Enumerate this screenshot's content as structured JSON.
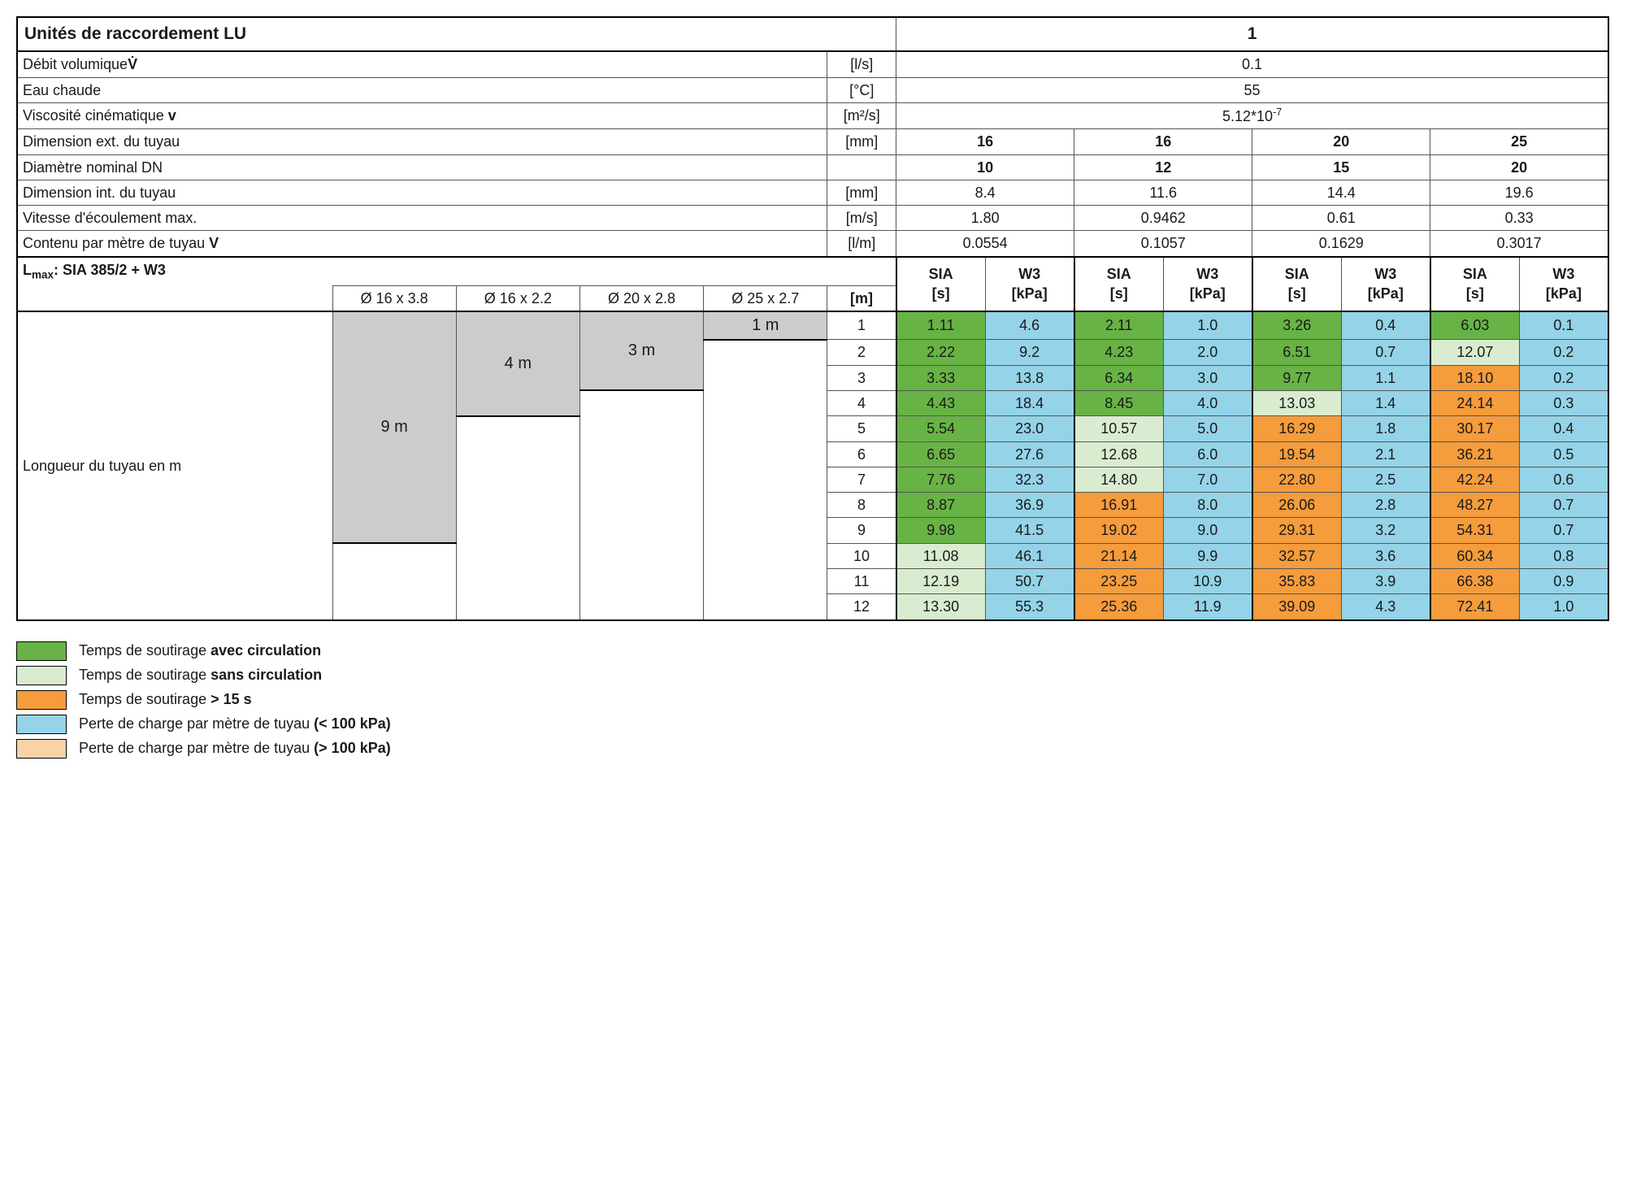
{
  "title_label": "Unités de raccordement LU",
  "title_value": "1",
  "rows_top": [
    {
      "l_pre": "Débit volumique",
      "l_bold": "V̇",
      "u": "[l/s]",
      "v": "0.1"
    },
    {
      "l_pre": "Eau chaude",
      "l_bold": "",
      "u": "[°C]",
      "v": "55"
    },
    {
      "l_pre": "Viscosité cinématique ",
      "l_bold": "v",
      "u": "[m²/s]",
      "v": "5.12*10<sup>-7</sup>"
    }
  ],
  "dimension_rows": [
    {
      "label": "Dimension ext. du tuyau",
      "u": "[mm]",
      "vals": [
        "16",
        "16",
        "20",
        "25"
      ],
      "bold": true
    },
    {
      "label": "Diamètre nominal DN",
      "u": "",
      "vals": [
        "10",
        "12",
        "15",
        "20"
      ],
      "bold": true
    },
    {
      "label": "Dimension int. du tuyau",
      "u": "[mm]",
      "vals": [
        "8.4",
        "11.6",
        "14.4",
        "19.6"
      ],
      "bold": false
    },
    {
      "label": "Vitesse d'écoulement max.",
      "u": "[m/s]",
      "vals": [
        "1.80",
        "0.9462",
        "0.61",
        "0.33"
      ],
      "bold": false
    },
    {
      "label": "Contenu par mètre de tuyau <b>V</b>",
      "u": "[l/m]",
      "vals": [
        "0.0554",
        "0.1057",
        "0.1629",
        "0.3017"
      ],
      "bold": false
    }
  ],
  "lmax_label": "L<sub>max</sub>: SIA 385/2 + W3",
  "pipe_headers": [
    "Ø 16 x 3.8",
    "Ø 16 x 2.2",
    "Ø 20 x 2.8",
    "Ø 25 x 2.7"
  ],
  "m_header": "[m]",
  "subheaders": [
    "SIA<br>[s]",
    "W3<br>[kPa]",
    "SIA<br>[s]",
    "W3<br>[kPa]",
    "SIA<br>[s]",
    "W3<br>[kPa]",
    "SIA<br>[s]",
    "W3<br>[kPa]"
  ],
  "longueur_label": "Longueur du tuyau en m",
  "lmax_cells": {
    "p1": "9 m",
    "p2": "4 m",
    "p3": "3 m",
    "p4": "1 m"
  },
  "data": [
    {
      "m": 1,
      "c": [
        [
          "1.11",
          "green"
        ],
        [
          "4.6",
          "lightblue"
        ],
        [
          "2.11",
          "green"
        ],
        [
          "1.0",
          "lightblue"
        ],
        [
          "3.26",
          "green"
        ],
        [
          "0.4",
          "lightblue"
        ],
        [
          "6.03",
          "green"
        ],
        [
          "0.1",
          "lightblue"
        ]
      ]
    },
    {
      "m": 2,
      "c": [
        [
          "2.22",
          "green"
        ],
        [
          "9.2",
          "lightblue"
        ],
        [
          "4.23",
          "green"
        ],
        [
          "2.0",
          "lightblue"
        ],
        [
          "6.51",
          "green"
        ],
        [
          "0.7",
          "lightblue"
        ],
        [
          "12.07",
          "lightgreen"
        ],
        [
          "0.2",
          "lightblue"
        ]
      ]
    },
    {
      "m": 3,
      "c": [
        [
          "3.33",
          "green"
        ],
        [
          "13.8",
          "lightblue"
        ],
        [
          "6.34",
          "green"
        ],
        [
          "3.0",
          "lightblue"
        ],
        [
          "9.77",
          "green"
        ],
        [
          "1.1",
          "lightblue"
        ],
        [
          "18.10",
          "orange"
        ],
        [
          "0.2",
          "lightblue"
        ]
      ]
    },
    {
      "m": 4,
      "c": [
        [
          "4.43",
          "green"
        ],
        [
          "18.4",
          "lightblue"
        ],
        [
          "8.45",
          "green"
        ],
        [
          "4.0",
          "lightblue"
        ],
        [
          "13.03",
          "lightgreen"
        ],
        [
          "1.4",
          "lightblue"
        ],
        [
          "24.14",
          "orange"
        ],
        [
          "0.3",
          "lightblue"
        ]
      ]
    },
    {
      "m": 5,
      "c": [
        [
          "5.54",
          "green"
        ],
        [
          "23.0",
          "lightblue"
        ],
        [
          "10.57",
          "lightgreen"
        ],
        [
          "5.0",
          "lightblue"
        ],
        [
          "16.29",
          "orange"
        ],
        [
          "1.8",
          "lightblue"
        ],
        [
          "30.17",
          "orange"
        ],
        [
          "0.4",
          "lightblue"
        ]
      ]
    },
    {
      "m": 6,
      "c": [
        [
          "6.65",
          "green"
        ],
        [
          "27.6",
          "lightblue"
        ],
        [
          "12.68",
          "lightgreen"
        ],
        [
          "6.0",
          "lightblue"
        ],
        [
          "19.54",
          "orange"
        ],
        [
          "2.1",
          "lightblue"
        ],
        [
          "36.21",
          "orange"
        ],
        [
          "0.5",
          "lightblue"
        ]
      ]
    },
    {
      "m": 7,
      "c": [
        [
          "7.76",
          "green"
        ],
        [
          "32.3",
          "lightblue"
        ],
        [
          "14.80",
          "lightgreen"
        ],
        [
          "7.0",
          "lightblue"
        ],
        [
          "22.80",
          "orange"
        ],
        [
          "2.5",
          "lightblue"
        ],
        [
          "42.24",
          "orange"
        ],
        [
          "0.6",
          "lightblue"
        ]
      ]
    },
    {
      "m": 8,
      "c": [
        [
          "8.87",
          "green"
        ],
        [
          "36.9",
          "lightblue"
        ],
        [
          "16.91",
          "orange"
        ],
        [
          "8.0",
          "lightblue"
        ],
        [
          "26.06",
          "orange"
        ],
        [
          "2.8",
          "lightblue"
        ],
        [
          "48.27",
          "orange"
        ],
        [
          "0.7",
          "lightblue"
        ]
      ]
    },
    {
      "m": 9,
      "c": [
        [
          "9.98",
          "green"
        ],
        [
          "41.5",
          "lightblue"
        ],
        [
          "19.02",
          "orange"
        ],
        [
          "9.0",
          "lightblue"
        ],
        [
          "29.31",
          "orange"
        ],
        [
          "3.2",
          "lightblue"
        ],
        [
          "54.31",
          "orange"
        ],
        [
          "0.7",
          "lightblue"
        ]
      ]
    },
    {
      "m": 10,
      "c": [
        [
          "11.08",
          "lightgreen"
        ],
        [
          "46.1",
          "lightblue"
        ],
        [
          "21.14",
          "orange"
        ],
        [
          "9.9",
          "lightblue"
        ],
        [
          "32.57",
          "orange"
        ],
        [
          "3.6",
          "lightblue"
        ],
        [
          "60.34",
          "orange"
        ],
        [
          "0.8",
          "lightblue"
        ]
      ]
    },
    {
      "m": 11,
      "c": [
        [
          "12.19",
          "lightgreen"
        ],
        [
          "50.7",
          "lightblue"
        ],
        [
          "23.25",
          "orange"
        ],
        [
          "10.9",
          "lightblue"
        ],
        [
          "35.83",
          "orange"
        ],
        [
          "3.9",
          "lightblue"
        ],
        [
          "66.38",
          "orange"
        ],
        [
          "0.9",
          "lightblue"
        ]
      ]
    },
    {
      "m": 12,
      "c": [
        [
          "13.30",
          "lightgreen"
        ],
        [
          "55.3",
          "lightblue"
        ],
        [
          "25.36",
          "orange"
        ],
        [
          "11.9",
          "lightblue"
        ],
        [
          "39.09",
          "orange"
        ],
        [
          "4.3",
          "lightblue"
        ],
        [
          "72.41",
          "orange"
        ],
        [
          "1.0",
          "lightblue"
        ]
      ]
    }
  ],
  "legend": [
    {
      "cls": "green",
      "txt": "Temps de soutirage <b>avec circulation</b>"
    },
    {
      "cls": "lightgreen",
      "txt": "Temps de soutirage <b>sans circulation</b>"
    },
    {
      "cls": "orange",
      "txt": "Temps de soutirage <b>> 15 s</b>"
    },
    {
      "cls": "lightblue",
      "txt": "Perte de charge par mètre de tuyau <b>(< 100 kPa)</b>"
    },
    {
      "cls": "lightorange",
      "txt": "Perte de charge par mètre de tuyau <b>(> 100 kPa)</b>"
    }
  ],
  "colors": {
    "green": "#68b345",
    "lightgreen": "#d9ecd0",
    "orange": "#f59c3c",
    "lightblue": "#94d3e8",
    "lightorange": "#fbd2a7",
    "grey": "#cccccc"
  }
}
